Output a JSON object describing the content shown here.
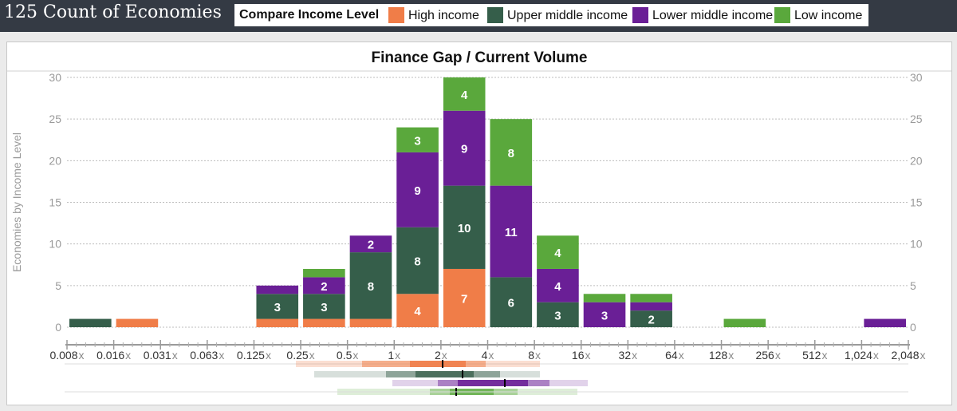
{
  "header": {
    "count_title": "125 Count of Economies",
    "legend_title": "Compare Income Level",
    "legend": [
      {
        "label": "High income",
        "color": "#f07d48"
      },
      {
        "label": "Upper middle income",
        "color": "#355e4a"
      },
      {
        "label": "Lower middle income",
        "color": "#6a1f96"
      },
      {
        "label": "Low income",
        "color": "#5aa83c"
      }
    ]
  },
  "chart_data": {
    "type": "bar",
    "stacked": true,
    "title": "Finance Gap / Current Volume",
    "ylabel": "Economies by Income Level",
    "xlabel": "",
    "ylim": [
      0,
      30
    ],
    "y_ticks": [
      "0",
      "5",
      "10",
      "15",
      "20",
      "25",
      "30"
    ],
    "x_scale": "log2",
    "x_tick_labels": [
      "0.008",
      "0.016",
      "0.031",
      "0.063",
      "0.125",
      "0.25",
      "0.5",
      "1",
      "2",
      "4",
      "8",
      "16",
      "32",
      "64",
      "128",
      "256",
      "512",
      "1,024",
      "2,048"
    ],
    "x_tick_suffix": "x",
    "categories": [
      "0.008–0.016",
      "0.016–0.031",
      "0.031–0.063",
      "0.063–0.125",
      "0.125–0.25",
      "0.25–0.5",
      "0.5–1",
      "1–2",
      "2–4",
      "4–8",
      "8–16",
      "16–32",
      "32–64",
      "64–128",
      "128–256",
      "256–512",
      "512–1,024",
      "1,024–2,048"
    ],
    "series": [
      {
        "name": "High income",
        "color": "#f07d48",
        "values": [
          0,
          1,
          0,
          0,
          1,
          1,
          1,
          4,
          7,
          0,
          0,
          0,
          0,
          0,
          0,
          0,
          0,
          0
        ]
      },
      {
        "name": "Upper middle income",
        "color": "#355e4a",
        "values": [
          1,
          0,
          0,
          0,
          3,
          3,
          8,
          8,
          10,
          6,
          3,
          0,
          2,
          0,
          0,
          0,
          0,
          0
        ]
      },
      {
        "name": "Lower middle income",
        "color": "#6a1f96",
        "values": [
          0,
          0,
          0,
          0,
          1,
          2,
          2,
          9,
          9,
          11,
          4,
          3,
          1,
          0,
          0,
          0,
          0,
          1
        ]
      },
      {
        "name": "Low income",
        "color": "#5aa83c",
        "values": [
          0,
          0,
          0,
          0,
          0,
          1,
          0,
          3,
          4,
          8,
          4,
          1,
          1,
          0,
          1,
          0,
          0,
          0
        ]
      }
    ],
    "grid": true
  }
}
